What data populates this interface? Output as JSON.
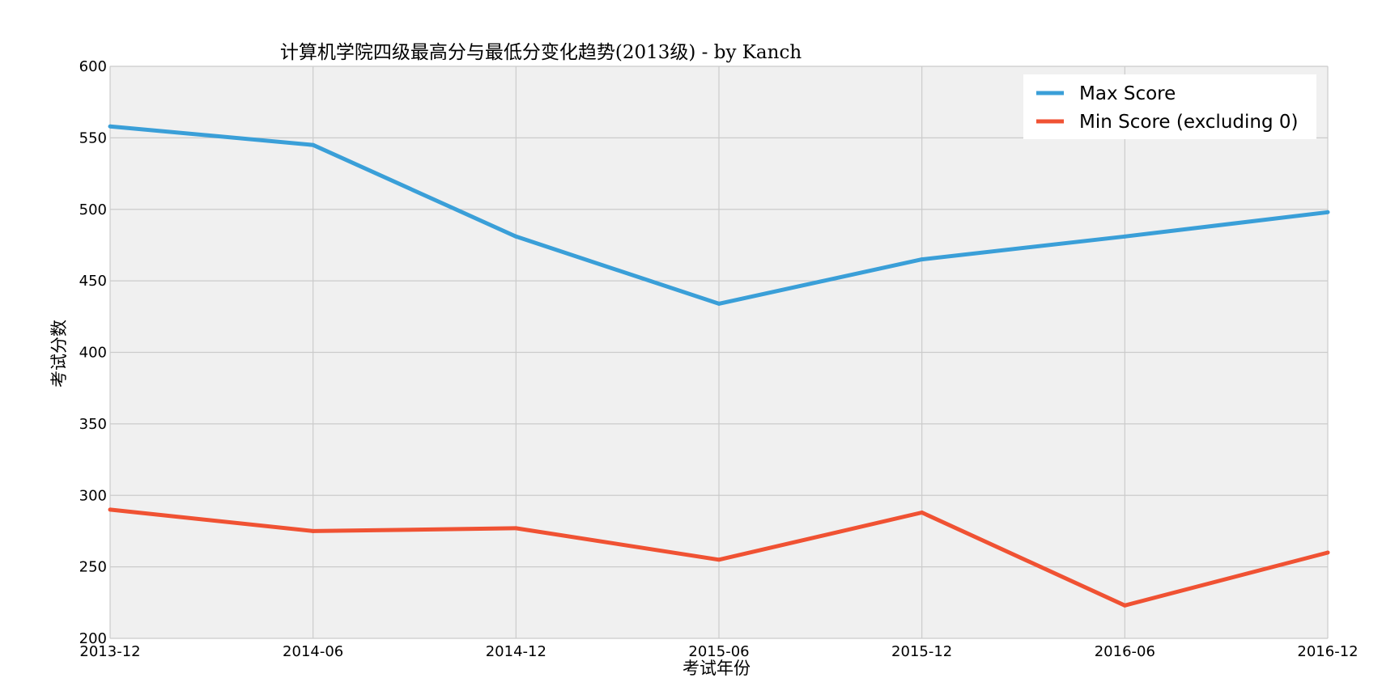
{
  "chart_data": {
    "type": "line",
    "title": "计算机学院四级最高分与最低分变化趋势(2013级) - by Kanch",
    "xlabel": "考试年份",
    "ylabel": "考试分数",
    "categories": [
      "2013-12",
      "2014-06",
      "2014-12",
      "2015-06",
      "2015-12",
      "2016-06",
      "2016-12"
    ],
    "ylim": [
      200,
      600
    ],
    "yticks": [
      200,
      250,
      300,
      350,
      400,
      450,
      500,
      550,
      600
    ],
    "grid": true,
    "legend_position": "top-right",
    "series": [
      {
        "name": "Max Score",
        "color": "#3a9fd8",
        "values": [
          558,
          545,
          481,
          434,
          465,
          481,
          498
        ]
      },
      {
        "name": "Min Score (excluding 0)",
        "color": "#f05233",
        "values": [
          290,
          275,
          277,
          255,
          288,
          223,
          260
        ]
      }
    ]
  },
  "colors": {
    "plot_background": "#f0f0f0",
    "grid": "#cbcbcb"
  }
}
